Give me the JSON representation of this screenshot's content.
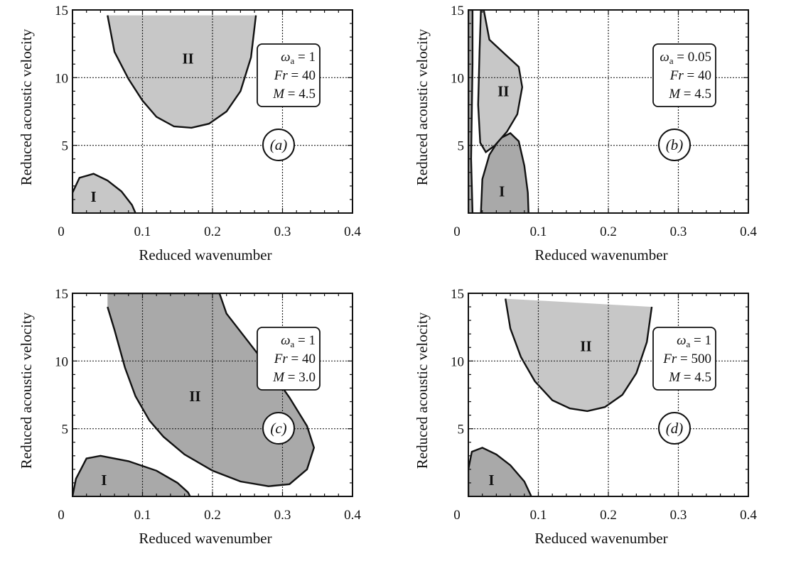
{
  "figure": {
    "background": "#ffffff",
    "shade_color": "#c7c7c7",
    "shade_dark": "#a9a9a9"
  },
  "chart_data": [
    {
      "type": "area",
      "panel_label": "(a)",
      "xlabel": "Reduced wavenumber",
      "ylabel": "Reduced acoustic velocity",
      "xlim": [
        0,
        0.4
      ],
      "ylim": [
        0,
        15
      ],
      "x_ticks": [
        "0",
        "0.1",
        "0.2",
        "0.3",
        "0.4"
      ],
      "y_ticks": [
        "5",
        "10",
        "15"
      ],
      "grid": true,
      "params": [
        {
          "symbol": "ω",
          "sub": "a",
          "value": "1"
        },
        {
          "symbol": "Fr",
          "value": "40"
        },
        {
          "symbol": "M",
          "value": "4.5"
        }
      ],
      "regions": [
        {
          "name": "I",
          "label_at": [
            0.03,
            1.2
          ],
          "tone": "light",
          "points": [
            [
              0.0,
              0.0
            ],
            [
              0.0,
              1.5
            ],
            [
              0.01,
              2.6
            ],
            [
              0.03,
              2.9
            ],
            [
              0.05,
              2.4
            ],
            [
              0.07,
              1.6
            ],
            [
              0.085,
              0.6
            ],
            [
              0.09,
              0.0
            ]
          ]
        },
        {
          "name": "II",
          "label_at": [
            0.165,
            11.4
          ],
          "tone": "light",
          "points": [
            [
              0.05,
              14.6
            ],
            [
              0.06,
              11.9
            ],
            [
              0.08,
              9.9
            ],
            [
              0.1,
              8.3
            ],
            [
              0.12,
              7.1
            ],
            [
              0.145,
              6.4
            ],
            [
              0.17,
              6.3
            ],
            [
              0.195,
              6.6
            ],
            [
              0.22,
              7.5
            ],
            [
              0.24,
              9.0
            ],
            [
              0.255,
              11.5
            ],
            [
              0.262,
              14.6
            ]
          ]
        }
      ]
    },
    {
      "type": "area",
      "panel_label": "(b)",
      "xlabel": "Reduced wavenumber",
      "ylabel": "Reduced acoustic velocity",
      "xlim": [
        0,
        0.4
      ],
      "ylim": [
        0,
        15
      ],
      "x_ticks": [
        "0",
        "0.1",
        "0.2",
        "0.3",
        "0.4"
      ],
      "y_ticks": [
        "5",
        "10",
        "15"
      ],
      "grid": true,
      "params": [
        {
          "symbol": "ω",
          "sub": "a",
          "value": "0.05"
        },
        {
          "symbol": "Fr",
          "value": "40"
        },
        {
          "symbol": "M",
          "value": "4.5"
        }
      ],
      "regions": [
        {
          "name": "I",
          "label_at": [
            0.048,
            1.6
          ],
          "tone": "dark",
          "points": [
            [
              0.018,
              0.0
            ],
            [
              0.02,
              2.5
            ],
            [
              0.03,
              4.3
            ],
            [
              0.045,
              5.5
            ],
            [
              0.06,
              5.9
            ],
            [
              0.072,
              5.3
            ],
            [
              0.08,
              3.5
            ],
            [
              0.085,
              1.5
            ],
            [
              0.086,
              0.0
            ]
          ]
        },
        {
          "name": "II",
          "label_at": [
            0.05,
            9.0
          ],
          "tone": "light",
          "points": [
            [
              0.022,
              15.0
            ],
            [
              0.03,
              12.8
            ],
            [
              0.055,
              11.6
            ],
            [
              0.072,
              10.8
            ],
            [
              0.077,
              9.3
            ],
            [
              0.07,
              7.3
            ],
            [
              0.055,
              6.0
            ],
            [
              0.038,
              5.0
            ],
            [
              0.025,
              4.5
            ],
            [
              0.017,
              5.2
            ],
            [
              0.014,
              8.0
            ],
            [
              0.016,
              12.0
            ],
            [
              0.018,
              15.0
            ]
          ]
        },
        {
          "name": "",
          "label_at": null,
          "tone": "dark",
          "points": [
            [
              0.0,
              0.0
            ],
            [
              0.0,
              15.0
            ],
            [
              0.006,
              15.0
            ],
            [
              0.006,
              11.0
            ],
            [
              0.004,
              4.0
            ],
            [
              0.006,
              0.0
            ]
          ]
        }
      ]
    },
    {
      "type": "area",
      "panel_label": "(c)",
      "xlabel": "Reduced wavenumber",
      "ylabel": "Reduced acoustic velocity",
      "xlim": [
        0,
        0.4
      ],
      "ylim": [
        0,
        15
      ],
      "x_ticks": [
        "0",
        "0.1",
        "0.2",
        "0.3",
        "0.4"
      ],
      "y_ticks": [
        "5",
        "10",
        "15"
      ],
      "grid": true,
      "params": [
        {
          "symbol": "ω",
          "sub": "a",
          "value": "1"
        },
        {
          "symbol": "Fr",
          "value": "40"
        },
        {
          "symbol": "M",
          "value": "3.0"
        }
      ],
      "regions": [
        {
          "name": "I",
          "label_at": [
            0.045,
            1.2
          ],
          "tone": "dark",
          "points": [
            [
              0.0,
              0.0
            ],
            [
              0.005,
              1.3
            ],
            [
              0.02,
              2.8
            ],
            [
              0.04,
              3.0
            ],
            [
              0.08,
              2.6
            ],
            [
              0.12,
              1.9
            ],
            [
              0.15,
              1.0
            ],
            [
              0.165,
              0.3
            ],
            [
              0.168,
              0.0
            ]
          ]
        },
        {
          "name": "II",
          "label_at": [
            0.175,
            7.4
          ],
          "tone": "dark",
          "points": [
            [
              0.05,
              14.0
            ],
            [
              0.06,
              12.3
            ],
            [
              0.075,
              9.5
            ],
            [
              0.09,
              7.4
            ],
            [
              0.11,
              5.6
            ],
            [
              0.13,
              4.4
            ],
            [
              0.16,
              3.1
            ],
            [
              0.2,
              1.9
            ],
            [
              0.24,
              1.1
            ],
            [
              0.28,
              0.75
            ],
            [
              0.31,
              0.9
            ],
            [
              0.335,
              2.0
            ],
            [
              0.345,
              3.6
            ],
            [
              0.335,
              5.2
            ],
            [
              0.31,
              7.3
            ],
            [
              0.28,
              9.5
            ],
            [
              0.25,
              11.5
            ],
            [
              0.22,
              13.5
            ],
            [
              0.21,
              15.0
            ],
            [
              0.05,
              15.0
            ]
          ]
        }
      ]
    },
    {
      "type": "area",
      "panel_label": "(d)",
      "xlabel": "Reduced wavenumber",
      "ylabel": "Reduced acoustic velocity",
      "xlim": [
        0,
        0.4
      ],
      "ylim": [
        0,
        15
      ],
      "x_ticks": [
        "0",
        "0.1",
        "0.2",
        "0.3",
        "0.4"
      ],
      "y_ticks": [
        "5",
        "10",
        "15"
      ],
      "grid": true,
      "params": [
        {
          "symbol": "ω",
          "sub": "a",
          "value": "1"
        },
        {
          "symbol": "Fr",
          "value": "500"
        },
        {
          "symbol": "M",
          "value": "4.5"
        }
      ],
      "regions": [
        {
          "name": "I",
          "label_at": [
            0.033,
            1.2
          ],
          "tone": "dark",
          "points": [
            [
              0.0,
              0.0
            ],
            [
              0.0,
              2.0
            ],
            [
              0.005,
              3.3
            ],
            [
              0.02,
              3.6
            ],
            [
              0.04,
              3.1
            ],
            [
              0.06,
              2.3
            ],
            [
              0.08,
              1.1
            ],
            [
              0.09,
              0.0
            ]
          ]
        },
        {
          "name": "II",
          "label_at": [
            0.168,
            11.1
          ],
          "tone": "light",
          "points": [
            [
              0.053,
              14.6
            ],
            [
              0.06,
              12.4
            ],
            [
              0.075,
              10.3
            ],
            [
              0.095,
              8.5
            ],
            [
              0.12,
              7.1
            ],
            [
              0.145,
              6.5
            ],
            [
              0.17,
              6.3
            ],
            [
              0.195,
              6.6
            ],
            [
              0.22,
              7.5
            ],
            [
              0.24,
              9.1
            ],
            [
              0.255,
              11.4
            ],
            [
              0.262,
              14.0
            ]
          ]
        }
      ]
    }
  ]
}
